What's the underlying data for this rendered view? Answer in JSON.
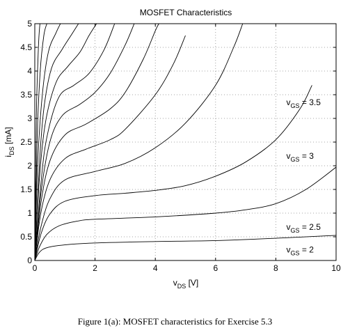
{
  "chart_data": {
    "type": "line",
    "title": "MOSFET Characteristics",
    "xlabel": {
      "main": "v",
      "sub": "DS",
      "unit": " [V]"
    },
    "ylabel": {
      "main": "i",
      "sub": "DS",
      "unit": " [mA]"
    },
    "xlim": [
      0,
      10
    ],
    "ylim": [
      0,
      5
    ],
    "xticks": [
      0,
      2,
      4,
      6,
      8,
      10
    ],
    "yticks": [
      0,
      0.5,
      1,
      1.5,
      2,
      2.5,
      3,
      3.5,
      4,
      4.5,
      5
    ],
    "grid": "dotted",
    "series": [
      {
        "values": [
          [
            0,
            0
          ],
          [
            0.15,
            0.17
          ],
          [
            0.4,
            0.27
          ],
          [
            1,
            0.33
          ],
          [
            2,
            0.37
          ],
          [
            4,
            0.4
          ],
          [
            6,
            0.42
          ],
          [
            8,
            0.47
          ],
          [
            10,
            0.53
          ]
        ]
      },
      {
        "values": [
          [
            0,
            0
          ],
          [
            0.15,
            0.28
          ],
          [
            0.4,
            0.55
          ],
          [
            0.8,
            0.73
          ],
          [
            1.4,
            0.83
          ],
          [
            2,
            0.87
          ],
          [
            4,
            0.92
          ],
          [
            6,
            1.0
          ],
          [
            7,
            1.07
          ],
          [
            8,
            1.2
          ],
          [
            9,
            1.5
          ],
          [
            10,
            1.97
          ]
        ]
      },
      {
        "values": [
          [
            0,
            0
          ],
          [
            0.2,
            0.55
          ],
          [
            0.5,
            0.98
          ],
          [
            1,
            1.25
          ],
          [
            2,
            1.37
          ],
          [
            3,
            1.42
          ],
          [
            4,
            1.48
          ],
          [
            5,
            1.58
          ],
          [
            6,
            1.78
          ],
          [
            7,
            2.08
          ],
          [
            8,
            2.55
          ],
          [
            8.8,
            3.2
          ],
          [
            9.2,
            3.7
          ]
        ]
      },
      {
        "values": [
          [
            0,
            0
          ],
          [
            0.2,
            0.7
          ],
          [
            0.5,
            1.3
          ],
          [
            1,
            1.7
          ],
          [
            2,
            1.88
          ],
          [
            3,
            2.05
          ],
          [
            4,
            2.38
          ],
          [
            5,
            2.9
          ],
          [
            6,
            3.7
          ],
          [
            6.6,
            4.5
          ],
          [
            6.9,
            5.0
          ]
        ]
      },
      {
        "values": [
          [
            0,
            0
          ],
          [
            0.2,
            1.0
          ],
          [
            0.5,
            1.7
          ],
          [
            1,
            2.15
          ],
          [
            1.7,
            2.35
          ],
          [
            2.5,
            2.55
          ],
          [
            3,
            2.77
          ],
          [
            4,
            3.5
          ],
          [
            4.6,
            4.15
          ],
          [
            5,
            4.75
          ]
        ]
      },
      {
        "values": [
          [
            0,
            0
          ],
          [
            0.2,
            1.2
          ],
          [
            0.5,
            2.1
          ],
          [
            1,
            2.65
          ],
          [
            1.7,
            2.88
          ],
          [
            2.5,
            3.2
          ],
          [
            3,
            3.55
          ],
          [
            3.6,
            4.25
          ],
          [
            4,
            4.85
          ],
          [
            4.12,
            5.0
          ]
        ]
      },
      {
        "values": [
          [
            0,
            0
          ],
          [
            0.2,
            1.4
          ],
          [
            0.5,
            2.5
          ],
          [
            0.9,
            3.05
          ],
          [
            1.5,
            3.3
          ],
          [
            2,
            3.55
          ],
          [
            2.5,
            3.95
          ],
          [
            3,
            4.55
          ],
          [
            3.3,
            5.0
          ]
        ]
      },
      {
        "values": [
          [
            0,
            0
          ],
          [
            0.2,
            1.6
          ],
          [
            0.4,
            2.6
          ],
          [
            0.8,
            3.45
          ],
          [
            1.3,
            3.7
          ],
          [
            1.8,
            3.95
          ],
          [
            2.3,
            4.45
          ],
          [
            2.65,
            5.0
          ]
        ]
      },
      {
        "values": [
          [
            0,
            0
          ],
          [
            0.15,
            1.7
          ],
          [
            0.35,
            2.9
          ],
          [
            0.7,
            3.75
          ],
          [
            1.1,
            4.1
          ],
          [
            1.5,
            4.4
          ],
          [
            1.8,
            4.75
          ],
          [
            2.05,
            5.0
          ]
        ]
      },
      {
        "values": [
          [
            0,
            0
          ],
          [
            0.15,
            2.0
          ],
          [
            0.3,
            3.2
          ],
          [
            0.55,
            4.05
          ],
          [
            0.9,
            4.45
          ],
          [
            1.2,
            4.75
          ],
          [
            1.45,
            5.0
          ]
        ]
      },
      {
        "values": [
          [
            0,
            0
          ],
          [
            0.1,
            2.1
          ],
          [
            0.25,
            3.5
          ],
          [
            0.45,
            4.4
          ],
          [
            0.7,
            4.8
          ],
          [
            0.85,
            5.0
          ]
        ]
      },
      {
        "values": [
          [
            0,
            0
          ],
          [
            0.08,
            2.6
          ],
          [
            0.18,
            4.0
          ],
          [
            0.3,
            4.75
          ],
          [
            0.4,
            5.0
          ]
        ]
      },
      {
        "values": [
          [
            0,
            0
          ],
          [
            0.05,
            3.0
          ],
          [
            0.12,
            4.5
          ],
          [
            0.17,
            5.0
          ]
        ]
      }
    ],
    "annotations": [
      {
        "main": "v",
        "sub": "GS",
        "text": " = 3.5",
        "x": 8.35,
        "y": 3.28
      },
      {
        "main": "v",
        "sub": "GS",
        "text": " = 3",
        "x": 8.35,
        "y": 2.15
      },
      {
        "main": "v",
        "sub": "GS",
        "text": " = 2.5",
        "x": 8.35,
        "y": 0.65
      },
      {
        "main": "v",
        "sub": "GS",
        "text": " = 2",
        "x": 8.35,
        "y": 0.17
      }
    ]
  },
  "caption": "Figure 1(a): MOSFET characteristics for Exercise 5.3"
}
